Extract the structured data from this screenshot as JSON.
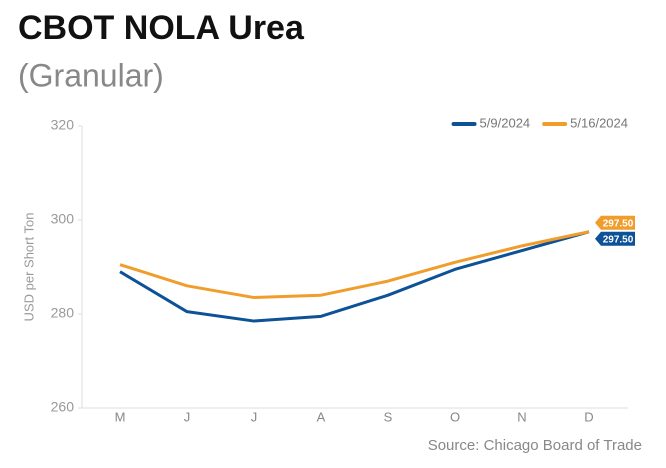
{
  "chart_data": {
    "type": "line",
    "title": "CBOT NOLA Urea",
    "subtitle": "(Granular)",
    "y_label": "USD per Short Ton",
    "source": "Source: Chicago Board of Trade",
    "categories": [
      "M",
      "J",
      "J",
      "A",
      "S",
      "O",
      "N",
      "D"
    ],
    "series": [
      {
        "name": "5/9/2024",
        "color": "#0d5297",
        "values": [
          289,
          280.5,
          278.5,
          279.5,
          284,
          289.5,
          293.5,
          297.5
        ],
        "value_labels": [
          null,
          null,
          null,
          null,
          null,
          null,
          null,
          "297.50"
        ]
      },
      {
        "name": "5/16/2024",
        "color": "#f09d2c",
        "values": [
          290.5,
          286,
          283.5,
          284,
          287,
          291,
          294.5,
          297.5
        ],
        "value_labels": [
          null,
          null,
          null,
          null,
          null,
          null,
          null,
          "297.50"
        ]
      }
    ],
    "ylim": [
      260,
      320
    ],
    "yticks": [
      260,
      280,
      300,
      320
    ],
    "legend": "top-right",
    "grid": false
  }
}
